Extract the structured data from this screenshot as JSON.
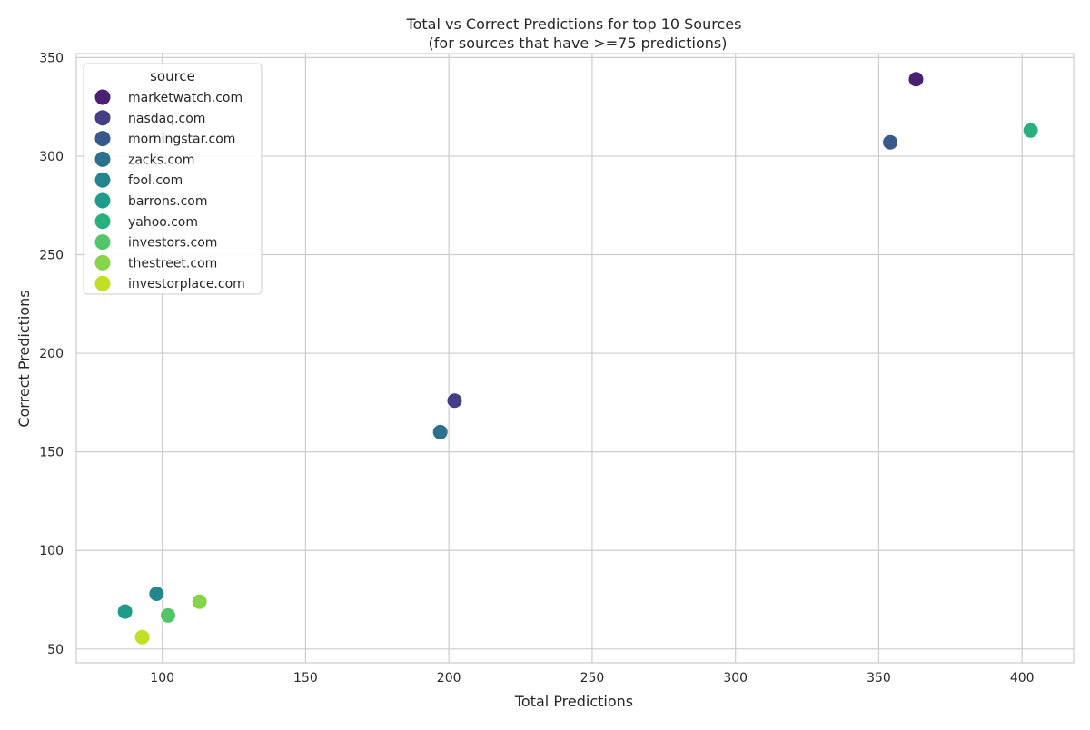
{
  "chart_data": {
    "type": "scatter",
    "title": "Total vs Correct Predictions for top 10 Sources",
    "subtitle": "(for sources that have >=75 predictions)",
    "xlabel": "Total Predictions",
    "ylabel": "Correct Predictions",
    "xlim": [
      70,
      418
    ],
    "ylim": [
      43,
      352
    ],
    "xticks": [
      100,
      150,
      200,
      250,
      300,
      350,
      400
    ],
    "yticks": [
      50,
      100,
      150,
      200,
      250,
      300,
      350
    ],
    "grid": true,
    "legend": {
      "title": "source",
      "placement": "top-left"
    },
    "series": [
      {
        "name": "marketwatch.com",
        "color": "#482173",
        "x": 363,
        "y": 339
      },
      {
        "name": "nasdaq.com",
        "color": "#433e85",
        "x": 202,
        "y": 176
      },
      {
        "name": "morningstar.com",
        "color": "#38598c",
        "x": 354,
        "y": 307
      },
      {
        "name": "zacks.com",
        "color": "#2d708e",
        "x": 197,
        "y": 160
      },
      {
        "name": "fool.com",
        "color": "#25858e",
        "x": 98,
        "y": 78
      },
      {
        "name": "barrons.com",
        "color": "#1e9b8a",
        "x": 87,
        "y": 69
      },
      {
        "name": "yahoo.com",
        "color": "#2ab07f",
        "x": 403,
        "y": 313
      },
      {
        "name": "investors.com",
        "color": "#52c569",
        "x": 102,
        "y": 67
      },
      {
        "name": "thestreet.com",
        "color": "#86d549",
        "x": 113,
        "y": 74
      },
      {
        "name": "investorplace.com",
        "color": "#c2df23",
        "x": 93,
        "y": 56
      }
    ]
  }
}
